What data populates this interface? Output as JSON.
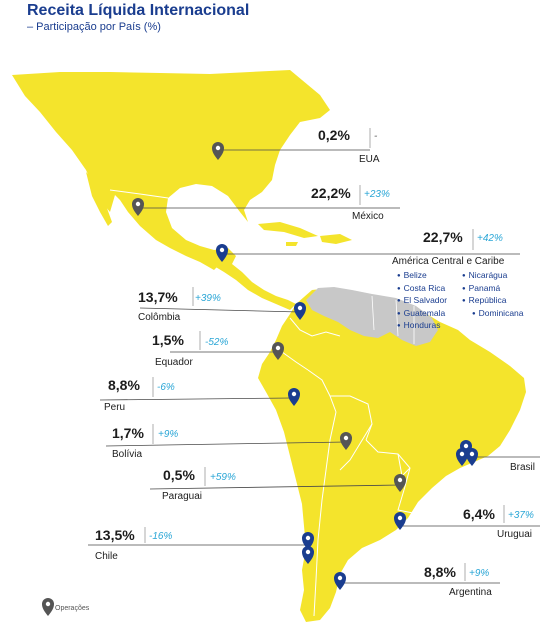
{
  "header": {
    "title": "Receita Líquida Internacional",
    "subtitle": "– Participação por País (%)"
  },
  "countries": {
    "eua": {
      "name": "EUA",
      "share": "0,2%",
      "change": "-"
    },
    "mexico": {
      "name": "México",
      "share": "22,2%",
      "change": "+23%"
    },
    "america_central": {
      "name": "América Central e Caribe",
      "share": "22,7%",
      "change": "+42%"
    },
    "colombia": {
      "name": "Colômbia",
      "share": "13,7%",
      "change": "+39%"
    },
    "equador": {
      "name": "Equador",
      "share": "1,5%",
      "change": "-52%"
    },
    "peru": {
      "name": "Peru",
      "share": "8,8%",
      "change": "-6%"
    },
    "bolivia": {
      "name": "Bolívia",
      "share": "1,7%",
      "change": "+9%"
    },
    "paraguai": {
      "name": "Paraguai",
      "share": "0,5%",
      "change": "+59%"
    },
    "uruguai": {
      "name": "Uruguai",
      "share": "6,4%",
      "change": "+37%"
    },
    "chile": {
      "name": "Chile",
      "share": "13,5%",
      "change": "-16%"
    },
    "argentina": {
      "name": "Argentina",
      "share": "8,8%",
      "change": "+9%"
    },
    "brasil": {
      "name": "Brasil"
    }
  },
  "central_america_list": {
    "col1": [
      "Belize",
      "Costa Rica",
      "El Salvador",
      "Guatemala",
      "Honduras"
    ],
    "col2": [
      "Nicarágua",
      "Panamá",
      "República",
      "Dominicana"
    ]
  },
  "legend": {
    "label": "Operações"
  },
  "colors": {
    "land": "#f4e42c",
    "venezuela_guianas": "#c8c8c8",
    "title": "#1a3d8f",
    "change": "#2aa6d6",
    "pin_gray": "#555555",
    "pin_blue": "#1a3d8f",
    "leader_line": "#4a4a4a"
  }
}
